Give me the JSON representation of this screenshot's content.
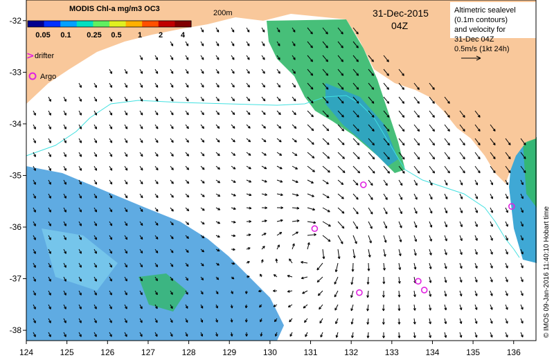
{
  "colorbar": {
    "title": "MODIS Chl-a mg/m3 OC3",
    "ticks": [
      "0.05",
      "0.1",
      "0.25",
      "0.5",
      "1",
      "2",
      "4"
    ],
    "colors": [
      "#00008f",
      "#0030ff",
      "#00a0ff",
      "#00e0c0",
      "#60f060",
      "#e0f020",
      "#ffb000",
      "#ff5000",
      "#c00000",
      "#800000"
    ]
  },
  "legend": {
    "drifter": "drifter",
    "argo": "Argo",
    "marker_color": "#e020e0"
  },
  "contour_label": "200m",
  "date": "31-Dec-2015",
  "time": "04Z",
  "info": {
    "lines": [
      "Altimetric sealevel",
      "(0.1m contours)",
      "and velocity for",
      "31-Dec 04Z",
      "0.5m/s (1kt 24h)"
    ]
  },
  "credit": "© IMOS 09-Jan-2016 11:40:10 Hobart time",
  "axes": {
    "x_ticks": [
      "124",
      "125",
      "126",
      "127",
      "128",
      "129",
      "130",
      "131",
      "132",
      "133",
      "134",
      "135",
      "136"
    ],
    "y_ticks": [
      "-32",
      "-33",
      "-34",
      "-35",
      "-36",
      "-37",
      "-38"
    ]
  },
  "argo_floats": [
    {
      "lon": 132.3,
      "lat": -35.18
    },
    {
      "lon": 131.1,
      "lat": -36.03
    },
    {
      "lon": 133.65,
      "lat": -37.05
    },
    {
      "lon": 133.8,
      "lat": -37.22
    },
    {
      "lon": 132.2,
      "lat": -37.27
    },
    {
      "lon": 135.95,
      "lat": -35.6
    }
  ],
  "colors": {
    "land": "#f9c89b",
    "contour": "#40e0e0",
    "vector": "#000000"
  }
}
